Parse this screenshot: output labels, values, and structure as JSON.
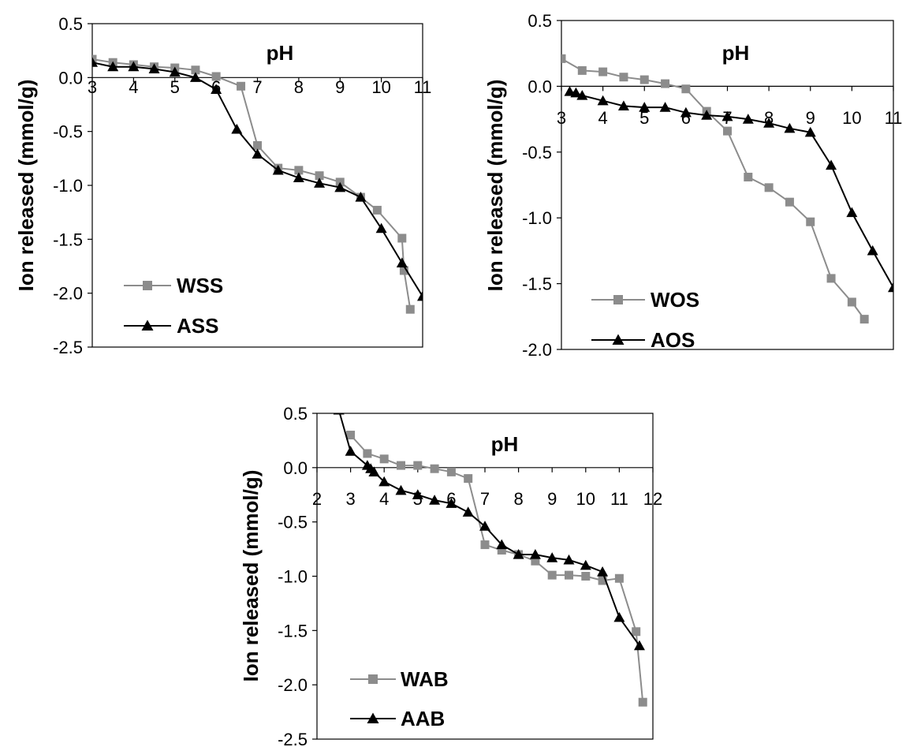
{
  "chart_data": [
    {
      "type": "line",
      "xlabel": "pH",
      "ylabel": "Ion released (mmol/g)",
      "xlim": [
        3,
        11
      ],
      "ylim": [
        -2.5,
        0.5
      ],
      "xticks": [
        "3",
        "4",
        "5",
        "6",
        "7",
        "8",
        "9",
        "10",
        "11"
      ],
      "yticks": [
        "0.5",
        "0.0",
        "-0.5",
        "-1.0",
        "-1.5",
        "-2.0",
        "-2.5"
      ],
      "legend_position": "bottom-left",
      "series": [
        {
          "name": "WSS",
          "color": "#8c8c8c",
          "marker": "square",
          "x": [
            3.0,
            3.5,
            4.0,
            4.5,
            5.0,
            5.5,
            6.0,
            6.6,
            7.0,
            7.5,
            8.0,
            8.5,
            9.0,
            9.5,
            9.9,
            10.5,
            10.55,
            10.7
          ],
          "y": [
            0.17,
            0.14,
            0.12,
            0.1,
            0.09,
            0.07,
            0.01,
            -0.08,
            -0.63,
            -0.84,
            -0.86,
            -0.91,
            -0.97,
            -1.11,
            -1.23,
            -1.49,
            -1.79,
            -2.15
          ]
        },
        {
          "name": "ASS",
          "color": "#000000",
          "marker": "triangle",
          "x": [
            3.0,
            3.5,
            4.0,
            4.5,
            5.0,
            5.5,
            6.0,
            6.5,
            7.0,
            7.5,
            8.0,
            8.5,
            9.0,
            9.5,
            10.0,
            10.5,
            11.0
          ],
          "y": [
            0.14,
            0.1,
            0.1,
            0.08,
            0.05,
            0.0,
            -0.11,
            -0.48,
            -0.71,
            -0.86,
            -0.93,
            -0.98,
            -1.02,
            -1.11,
            -1.4,
            -1.72,
            -2.03
          ]
        }
      ]
    },
    {
      "type": "line",
      "xlabel": "pH",
      "ylabel": "Ion released (mmol/g)",
      "xlim": [
        3,
        11
      ],
      "ylim": [
        -2.0,
        0.5
      ],
      "xticks": [
        "3",
        "4",
        "5",
        "6",
        "7",
        "8",
        "9",
        "10",
        "11"
      ],
      "yticks": [
        "0.5",
        "0.0",
        "-0.5",
        "-1.0",
        "-1.5",
        "-2.0"
      ],
      "legend_position": "bottom-left",
      "series": [
        {
          "name": "WOS",
          "color": "#8c8c8c",
          "marker": "square",
          "x": [
            3.0,
            3.5,
            4.0,
            4.5,
            5.0,
            5.5,
            6.0,
            6.5,
            7.0,
            7.5,
            8.0,
            8.5,
            9.0,
            9.5,
            10.0,
            10.3
          ],
          "y": [
            0.21,
            0.12,
            0.11,
            0.07,
            0.05,
            0.02,
            -0.02,
            -0.19,
            -0.34,
            -0.69,
            -0.77,
            -0.88,
            -1.03,
            -1.46,
            -1.64,
            -1.77
          ]
        },
        {
          "name": "AOS",
          "color": "#000000",
          "marker": "triangle",
          "x": [
            3.2,
            3.35,
            3.5,
            4.0,
            4.5,
            5.0,
            5.5,
            6.0,
            6.5,
            7.0,
            7.5,
            8.0,
            8.5,
            9.0,
            9.5,
            10.0,
            10.5,
            11.0
          ],
          "y": [
            -0.04,
            -0.05,
            -0.07,
            -0.11,
            -0.15,
            -0.16,
            -0.16,
            -0.2,
            -0.22,
            -0.23,
            -0.25,
            -0.28,
            -0.32,
            -0.35,
            -0.6,
            -0.96,
            -1.25,
            -1.53
          ]
        }
      ]
    },
    {
      "type": "line",
      "xlabel": "pH",
      "ylabel": "Ion released (mmol/g)",
      "xlim": [
        2,
        12
      ],
      "ylim": [
        -2.5,
        0.5
      ],
      "xticks": [
        "2",
        "3",
        "4",
        "5",
        "6",
        "7",
        "8",
        "9",
        "10",
        "11",
        "12"
      ],
      "yticks": [
        "0.5",
        "0.0",
        "-0.5",
        "-1.0",
        "-1.5",
        "-2.0",
        "-2.5"
      ],
      "legend_position": "bottom-left",
      "series": [
        {
          "name": "WAB",
          "color": "#8c8c8c",
          "marker": "square",
          "x": [
            3.0,
            3.5,
            4.0,
            4.5,
            5.0,
            5.5,
            6.0,
            6.5,
            7.0,
            7.5,
            8.0,
            8.5,
            9.0,
            9.5,
            10.0,
            10.5,
            11.0,
            11.5,
            11.7
          ],
          "y": [
            0.3,
            0.13,
            0.08,
            0.02,
            0.02,
            -0.01,
            -0.04,
            -0.1,
            -0.71,
            -0.76,
            -0.8,
            -0.86,
            -0.99,
            -0.99,
            -1.0,
            -1.04,
            -1.02,
            -1.51,
            -2.16
          ]
        },
        {
          "name": "AAB",
          "color": "#000000",
          "marker": "triangle",
          "x": [
            2.65,
            3.0,
            3.5,
            3.6,
            3.7,
            4.0,
            4.5,
            5.0,
            5.5,
            6.0,
            6.5,
            7.0,
            7.5,
            8.0,
            8.5,
            9.0,
            9.5,
            10.0,
            10.5,
            11.0,
            11.6
          ],
          "y": [
            0.53,
            0.15,
            0.02,
            -0.01,
            -0.04,
            -0.13,
            -0.21,
            -0.25,
            -0.3,
            -0.33,
            -0.41,
            -0.54,
            -0.71,
            -0.8,
            -0.8,
            -0.83,
            -0.85,
            -0.9,
            -0.96,
            -1.38,
            -1.64
          ]
        }
      ]
    }
  ]
}
